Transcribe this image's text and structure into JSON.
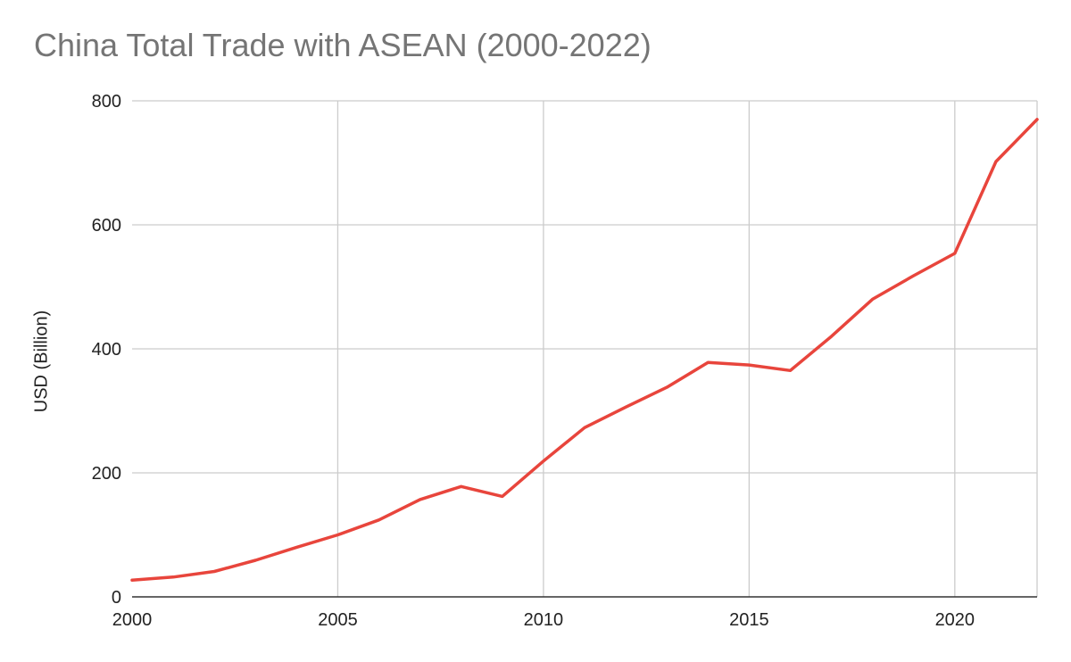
{
  "chart_data": {
    "type": "line",
    "title": "China Total Trade with ASEAN (2000-2022)",
    "xlabel": "",
    "ylabel": "USD (Billion)",
    "xlim": [
      2000,
      2022
    ],
    "ylim": [
      0,
      800
    ],
    "x_ticks": [
      2000,
      2005,
      2010,
      2015,
      2020
    ],
    "y_ticks": [
      0,
      200,
      400,
      600,
      800
    ],
    "grid": true,
    "series": [
      {
        "color": "#e8453c",
        "x": [
          2000,
          2001,
          2002,
          2003,
          2004,
          2005,
          2006,
          2007,
          2008,
          2009,
          2010,
          2011,
          2012,
          2013,
          2014,
          2015,
          2016,
          2017,
          2018,
          2019,
          2020,
          2021,
          2022
        ],
        "values": [
          27,
          32,
          41,
          59,
          80,
          100,
          124,
          157,
          178,
          162,
          219,
          273,
          306,
          338,
          378,
          374,
          365,
          420,
          480,
          518,
          554,
          702,
          770
        ]
      }
    ]
  }
}
